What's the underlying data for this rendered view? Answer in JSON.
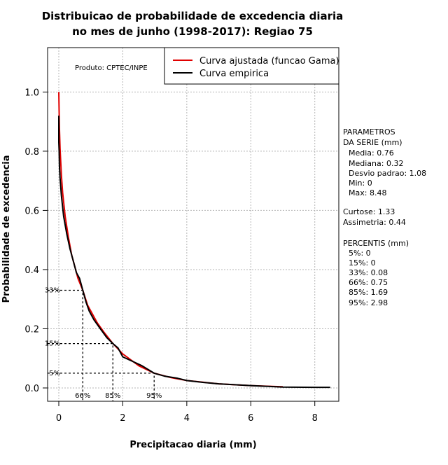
{
  "chart_data": {
    "type": "line",
    "title_line1": "Distribuicao de probabilidade de excedencia diaria",
    "title_line2": "no mes de junho (1998-2017): Regiao 75",
    "xlabel": "Precipitacao diaria (mm)",
    "ylabel": "Probabilidade de excedencia",
    "xlim": [
      -0.35,
      8.75
    ],
    "ylim": [
      -0.045,
      1.15
    ],
    "xticks": [
      0,
      2,
      4,
      6,
      8
    ],
    "xtick_labels": [
      "0",
      "2",
      "4",
      "6",
      "8"
    ],
    "yticks": [
      0.0,
      0.2,
      0.4,
      0.6,
      0.8,
      1.0
    ],
    "ytick_labels": [
      "0.0",
      "0.2",
      "0.4",
      "0.6",
      "0.8",
      "1.0"
    ],
    "grid": true,
    "product_label": "Produto: CPTEC/INPE",
    "legend": {
      "position": "top-right",
      "entries": [
        {
          "label": "Curva ajustada (funcao Gama)",
          "color": "#e00000"
        },
        {
          "label": "Curva empirica",
          "color": "#000000"
        }
      ]
    },
    "series": [
      {
        "name": "Curva ajustada (funcao Gama)",
        "color": "#e00000",
        "x": [
          0.0,
          0.01,
          0.02,
          0.04,
          0.08,
          0.12,
          0.2,
          0.3,
          0.4,
          0.5,
          0.6,
          0.75,
          0.9,
          1.0,
          1.2,
          1.4,
          1.69,
          2.0,
          2.5,
          2.98,
          3.5,
          4.0,
          5.0,
          6.0,
          7.0
        ],
        "y": [
          1.0,
          0.93,
          0.88,
          0.81,
          0.72,
          0.66,
          0.58,
          0.51,
          0.45,
          0.41,
          0.37,
          0.33,
          0.28,
          0.26,
          0.22,
          0.19,
          0.15,
          0.115,
          0.075,
          0.05,
          0.035,
          0.025,
          0.014,
          0.008,
          0.004
        ]
      },
      {
        "name": "Curva empirica",
        "color": "#000000",
        "x": [
          0.0,
          0.0,
          0.01,
          0.02,
          0.04,
          0.08,
          0.15,
          0.25,
          0.35,
          0.45,
          0.55,
          0.65,
          0.75,
          0.85,
          0.95,
          1.1,
          1.3,
          1.5,
          1.69,
          1.85,
          2.0,
          2.3,
          2.6,
          2.98,
          3.3,
          3.7,
          4.0,
          4.5,
          5.0,
          6.0,
          7.0,
          8.0,
          8.48
        ],
        "y": [
          0.92,
          0.83,
          0.8,
          0.75,
          0.71,
          0.65,
          0.58,
          0.52,
          0.47,
          0.43,
          0.39,
          0.37,
          0.33,
          0.29,
          0.26,
          0.23,
          0.2,
          0.17,
          0.15,
          0.135,
          0.105,
          0.09,
          0.075,
          0.05,
          0.04,
          0.033,
          0.025,
          0.019,
          0.014,
          0.008,
          0.003,
          0.002,
          0.002
        ]
      }
    ],
    "markers": {
      "y_labels": [
        "33%",
        "15%",
        "5%"
      ],
      "y_values": [
        0.33,
        0.15,
        0.05
      ],
      "x_labels": [
        "66%",
        "85%",
        "95%"
      ],
      "x_values": [
        0.75,
        1.69,
        2.98
      ]
    },
    "side_panel": {
      "params_header1": "PARAMETROS",
      "params_header2": "DA SERIE (mm)",
      "media": "Media: 0.76",
      "mediana": "Mediana: 0.32",
      "desvio": "Desvio padrao: 1.08",
      "min": "Min: 0",
      "max": "Max: 8.48",
      "curtose": "Curtose: 1.33",
      "assimetria": "Assimetria: 0.44",
      "pct_header": "PERCENTIS (mm)",
      "p5": "5%: 0",
      "p15": "15%: 0",
      "p33": "33%: 0.08",
      "p66": "66%: 0.75",
      "p85": "85%: 1.69",
      "p95": "95%: 2.98"
    }
  }
}
